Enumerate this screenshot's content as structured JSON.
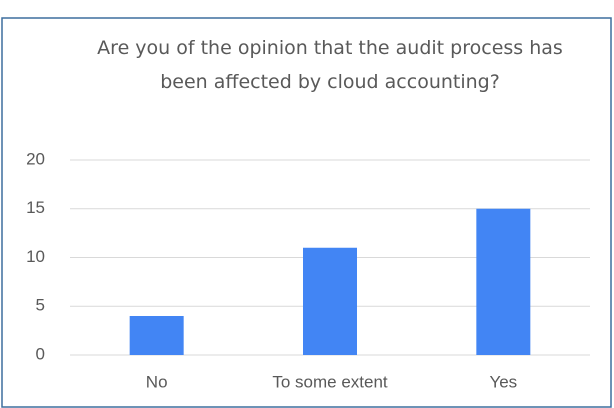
{
  "chart_data": {
    "type": "bar",
    "title": "Are you of the opinion that the audit process has been affected by cloud accounting?",
    "categories": [
      "No",
      "To some extent",
      "Yes"
    ],
    "values": [
      4,
      11,
      15
    ],
    "color": "#4285f4",
    "ylim": [
      0,
      20
    ],
    "yticks": [
      0,
      5,
      10,
      15,
      20
    ],
    "grid": true
  }
}
